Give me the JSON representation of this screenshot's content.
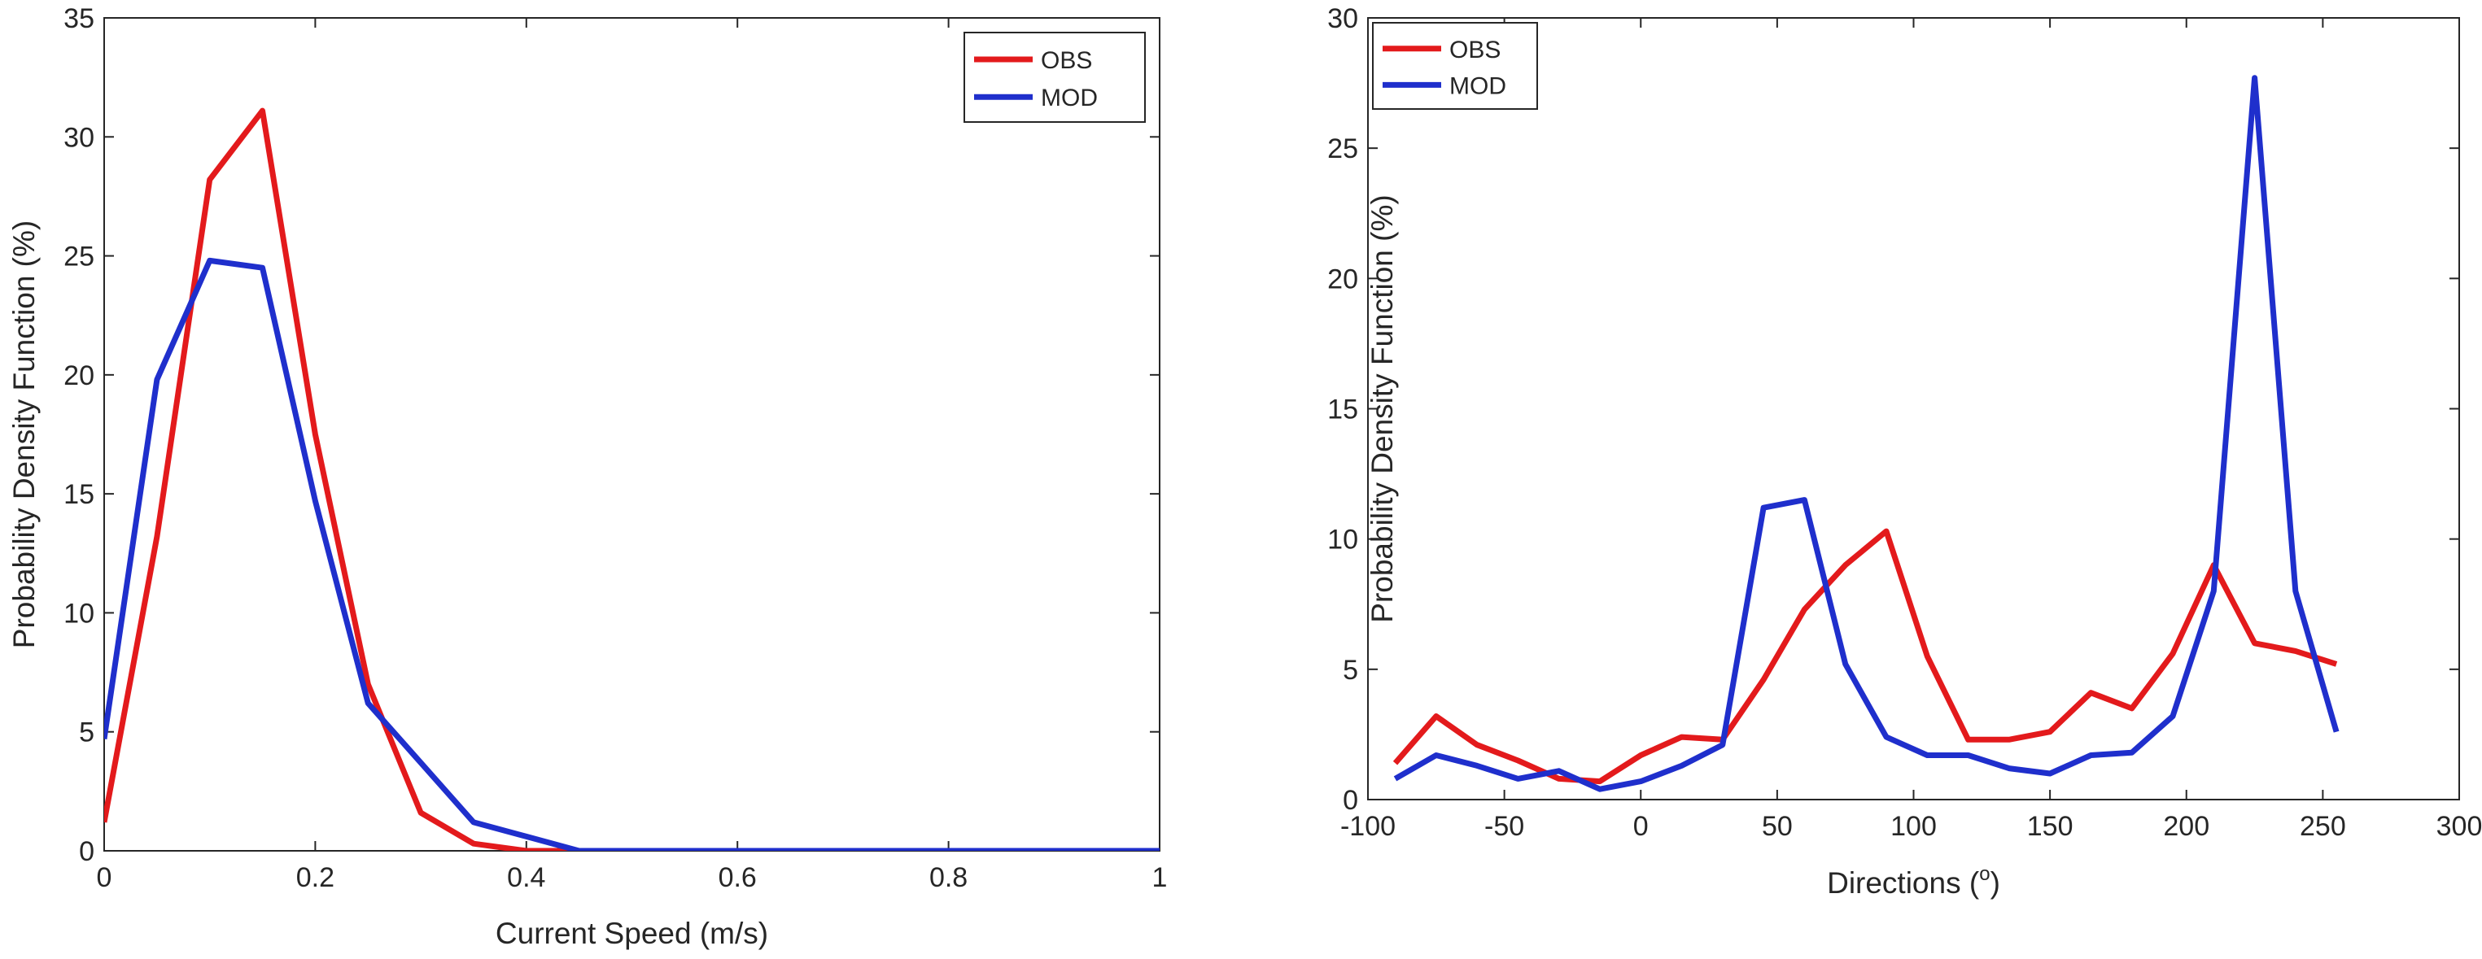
{
  "chart_data": [
    {
      "type": "line",
      "title": "",
      "xlabel": "Current Speed (m/s)",
      "ylabel": "Probability Density Function (%)",
      "xlim": [
        0,
        1
      ],
      "ylim": [
        0,
        35
      ],
      "xticks": [
        0,
        0.2,
        0.4,
        0.6,
        0.8,
        1
      ],
      "xtick_labels": [
        "0",
        "0.2",
        "0.4",
        "0.6",
        "0.8",
        "1"
      ],
      "yticks": [
        0,
        5,
        10,
        15,
        20,
        25,
        30,
        35
      ],
      "ytick_labels": [
        "0",
        "5",
        "10",
        "15",
        "20",
        "25",
        "30",
        "35"
      ],
      "grid": false,
      "legend_position": "top-right",
      "series": [
        {
          "name": "OBS",
          "color": "#e31a1c",
          "x": [
            0,
            0.05,
            0.1,
            0.15,
            0.2,
            0.25,
            0.3,
            0.35,
            0.4,
            0.45,
            0.5,
            0.55,
            0.6,
            0.65,
            0.7,
            0.75,
            0.8,
            0.85,
            0.9,
            0.95,
            1.0
          ],
          "y": [
            1.2,
            13.2,
            28.2,
            31.1,
            17.5,
            7.0,
            1.6,
            0.3,
            0,
            0,
            0,
            0,
            0,
            0,
            0,
            0,
            0,
            0,
            0,
            0,
            0
          ]
        },
        {
          "name": "MOD",
          "color": "#1f2fcc",
          "x": [
            0,
            0.05,
            0.1,
            0.15,
            0.2,
            0.25,
            0.3,
            0.35,
            0.4,
            0.45,
            0.5,
            0.55,
            0.6,
            0.65,
            0.7,
            0.75,
            0.8,
            0.85,
            0.9,
            0.95,
            1.0
          ],
          "y": [
            4.7,
            19.8,
            24.8,
            24.5,
            14.7,
            6.2,
            3.7,
            1.2,
            0.6,
            0,
            0,
            0,
            0,
            0,
            0,
            0,
            0,
            0,
            0,
            0,
            0
          ]
        }
      ]
    },
    {
      "type": "line",
      "title": "",
      "xlabel": "Directions (°)",
      "xlabel_main": "Directions (",
      "xlabel_sup": "o",
      "xlabel_end": ")",
      "ylabel": "Probability Density Function (%)",
      "xlim": [
        -100,
        300
      ],
      "ylim": [
        0,
        30
      ],
      "xticks": [
        -100,
        -50,
        0,
        50,
        100,
        150,
        200,
        250,
        300
      ],
      "xtick_labels": [
        "-100",
        "-50",
        "0",
        "50",
        "100",
        "150",
        "200",
        "250",
        "300"
      ],
      "yticks": [
        0,
        5,
        10,
        15,
        20,
        25,
        30
      ],
      "ytick_labels": [
        "0",
        "5",
        "10",
        "15",
        "20",
        "25",
        "30"
      ],
      "grid": false,
      "legend_position": "top-left",
      "series": [
        {
          "name": "OBS",
          "color": "#e31a1c",
          "x": [
            -90,
            -75,
            -60,
            -45,
            -30,
            -15,
            0,
            15,
            30,
            45,
            60,
            75,
            90,
            105,
            120,
            135,
            150,
            165,
            180,
            195,
            210,
            225,
            240,
            255
          ],
          "y": [
            1.4,
            3.2,
            2.1,
            1.5,
            0.8,
            0.7,
            1.7,
            2.4,
            2.3,
            4.6,
            7.3,
            9.0,
            10.3,
            5.5,
            2.3,
            2.3,
            2.6,
            4.1,
            3.5,
            5.6,
            9.0,
            6.0,
            5.7,
            5.2
          ]
        },
        {
          "name": "MOD",
          "color": "#1f2fcc",
          "x": [
            -90,
            -75,
            -60,
            -45,
            -30,
            -15,
            0,
            15,
            30,
            45,
            60,
            75,
            90,
            105,
            120,
            135,
            150,
            165,
            180,
            195,
            210,
            225,
            240,
            255
          ],
          "y": [
            0.8,
            1.7,
            1.3,
            0.8,
            1.1,
            0.4,
            0.7,
            1.3,
            2.1,
            11.2,
            11.5,
            5.2,
            2.4,
            1.7,
            1.7,
            1.2,
            1.0,
            1.7,
            1.8,
            3.2,
            8.0,
            27.7,
            8.0,
            2.6
          ]
        }
      ]
    }
  ]
}
